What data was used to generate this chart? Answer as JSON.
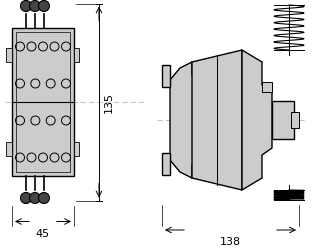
{
  "bg_color": "#ffffff",
  "line_color": "#000000",
  "fill_color": "#cccccc",
  "dim_color": "#000000",
  "centerline_color": "#aaaaaa",
  "labels": {
    "dim_135": "135",
    "dim_45": "45",
    "dim_138": "138"
  }
}
